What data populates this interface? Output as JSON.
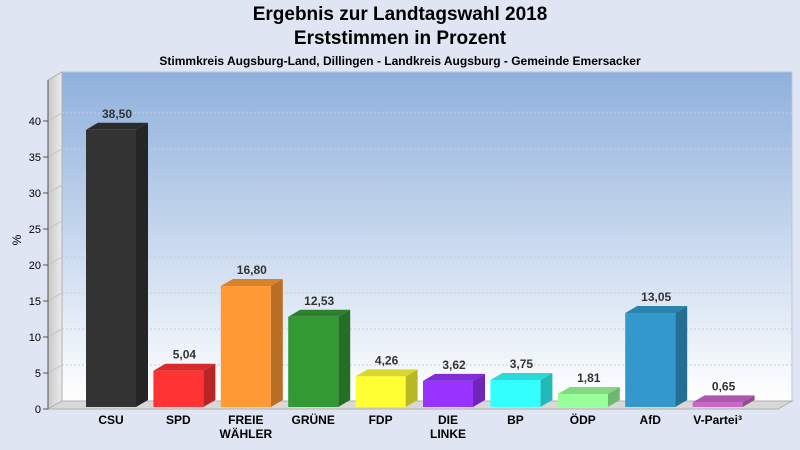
{
  "chart_data": {
    "type": "bar",
    "title": "Ergebnis zur Landtagswahl 2018",
    "subtitle": "Erststimmen in Prozent",
    "subsubtitle": "Stimmkreis Augsburg-Land, Dillingen - Landkreis Augsburg - Gemeinde Emersacker",
    "ylabel": "%",
    "ylim": [
      0,
      40
    ],
    "yticks": [
      "0",
      "5",
      "10",
      "15",
      "20",
      "25",
      "30",
      "35",
      "40"
    ],
    "grid": true,
    "categories": [
      [
        "CSU"
      ],
      [
        "SPD"
      ],
      [
        "FREIE",
        "WÄHLER"
      ],
      [
        "GRÜNE"
      ],
      [
        "FDP"
      ],
      [
        "DIE",
        "LINKE"
      ],
      [
        "BP"
      ],
      [
        "ÖDP"
      ],
      [
        "AfD"
      ],
      [
        "V-Partei³"
      ]
    ],
    "values": [
      38.5,
      5.04,
      16.8,
      12.53,
      4.26,
      3.62,
      3.75,
      1.81,
      13.05,
      0.65
    ],
    "value_labels": [
      "38,50",
      "5,04",
      "16,80",
      "12,53",
      "4,26",
      "3,62",
      "3,75",
      "1,81",
      "13,05",
      "0,65"
    ],
    "colors": [
      "#333333",
      "#ff3333",
      "#ff9933",
      "#339933",
      "#ffff33",
      "#9933ff",
      "#33ffff",
      "#99ff99",
      "#3399cc",
      "#cc66cc"
    ]
  }
}
